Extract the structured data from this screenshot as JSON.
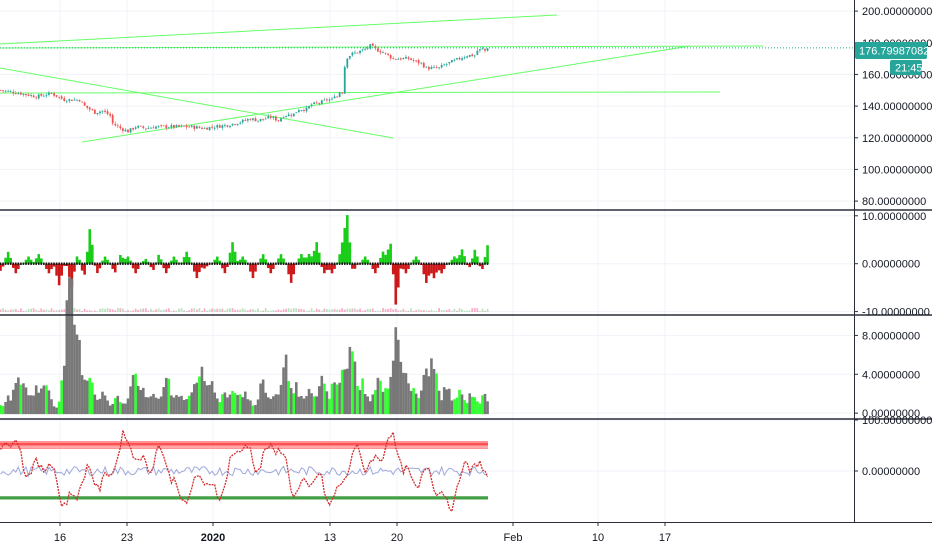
{
  "last_price_label": "176.79987082",
  "countdown_label": "21:45",
  "colors": {
    "up": "#26a69a",
    "down": "#ef5350",
    "trendline": "#66ff66",
    "tag_bg": "#26a69a",
    "osc_green": "#00c800",
    "osc_red": "#c80000",
    "vol_bar": "#787878",
    "vol_hi": "#33ff33",
    "stoch_line": "#d32f2f",
    "stoch_bands_red": "#ff5252",
    "stoch_band_green": "#43a047",
    "blue_line": "#9fa8da"
  },
  "chart_data": [
    {
      "pane": "price",
      "type": "candlestick",
      "y_ticks": [
        "200.00000000",
        "180.00000000",
        "160.00000000",
        "140.00000000",
        "120.00000000",
        "100.00000000",
        "80.00000000"
      ],
      "ylim": [
        75,
        207
      ],
      "last_price": 176.79987082,
      "path": [
        [
          0,
          150
        ],
        [
          8,
          148
        ],
        [
          14,
          146
        ],
        [
          20,
          148
        ],
        [
          25,
          144
        ],
        [
          31,
          144
        ],
        [
          33,
          140
        ],
        [
          37,
          136
        ],
        [
          40,
          137
        ],
        [
          43,
          134
        ],
        [
          44,
          129
        ],
        [
          47,
          126
        ],
        [
          50,
          124
        ],
        [
          53,
          127
        ],
        [
          57,
          126
        ],
        [
          61,
          127
        ],
        [
          68,
          127
        ],
        [
          74,
          127
        ],
        [
          80,
          126
        ],
        [
          84,
          127
        ],
        [
          89,
          128
        ],
        [
          94,
          130
        ],
        [
          98,
          132
        ],
        [
          101,
          131
        ],
        [
          106,
          133
        ],
        [
          109,
          131
        ],
        [
          111,
          134
        ],
        [
          115,
          135
        ],
        [
          117,
          138
        ],
        [
          120,
          138
        ],
        [
          122,
          141
        ],
        [
          125,
          142
        ],
        [
          128,
          144
        ],
        [
          130,
          144
        ],
        [
          131,
          147
        ],
        [
          132,
          146
        ],
        [
          133,
          149
        ],
        [
          133,
          150
        ],
        [
          134,
          149
        ],
        [
          134,
          155
        ],
        [
          135,
          165
        ],
        [
          136,
          171
        ],
        [
          138,
          173
        ],
        [
          140,
          174
        ],
        [
          143,
          176
        ],
        [
          145,
          178
        ],
        [
          147,
          176
        ],
        [
          150,
          174
        ],
        [
          154,
          170
        ],
        [
          157,
          170
        ],
        [
          160,
          170
        ],
        [
          163,
          168
        ],
        [
          165,
          167
        ],
        [
          167,
          164
        ],
        [
          170,
          164
        ],
        [
          172,
          164
        ],
        [
          174,
          166
        ],
        [
          177,
          168
        ],
        [
          180,
          170
        ],
        [
          183,
          172
        ],
        [
          186,
          172
        ],
        [
          187,
          175
        ],
        [
          189,
          176
        ],
        [
          190,
          175
        ],
        [
          191,
          177
        ]
      ]
    },
    {
      "pane": "oscillator",
      "type": "area",
      "y_ticks": [
        "10.00000000",
        "0.00000000",
        "-10.00000000"
      ],
      "ylim": [
        -10.5,
        11
      ],
      "peaks": [
        [
          0,
          -1.5
        ],
        [
          3,
          2.5
        ],
        [
          6,
          -2
        ],
        [
          11,
          1.5
        ],
        [
          15,
          2
        ],
        [
          19,
          -2
        ],
        [
          23,
          -4.5
        ],
        [
          28,
          -5
        ],
        [
          30,
          2
        ],
        [
          33,
          -3
        ],
        [
          35,
          7.5
        ],
        [
          38,
          -2
        ],
        [
          41,
          1.5
        ],
        [
          45,
          -2
        ],
        [
          47,
          2
        ],
        [
          50,
          1.5
        ],
        [
          53,
          -2
        ],
        [
          57,
          1
        ],
        [
          60,
          -1.5
        ],
        [
          62,
          2
        ],
        [
          65,
          -2
        ],
        [
          68,
          1.5
        ],
        [
          73,
          2.5
        ],
        [
          77,
          -3
        ],
        [
          80,
          -1
        ],
        [
          85,
          1.5
        ],
        [
          88,
          -2
        ],
        [
          91,
          4.5
        ],
        [
          95,
          1.5
        ],
        [
          99,
          -3
        ],
        [
          103,
          2
        ],
        [
          106,
          -2
        ],
        [
          110,
          2
        ],
        [
          114,
          -4
        ],
        [
          118,
          2
        ],
        [
          121,
          2
        ],
        [
          124,
          4.5
        ],
        [
          127,
          -2
        ],
        [
          130,
          -2
        ],
        [
          134,
          3.5
        ],
        [
          136,
          10
        ],
        [
          138,
          -2
        ],
        [
          143,
          1.5
        ],
        [
          147,
          -2
        ],
        [
          150,
          2.5
        ],
        [
          153,
          5
        ],
        [
          155,
          -9
        ],
        [
          159,
          -2
        ],
        [
          163,
          1.5
        ],
        [
          167,
          -4
        ],
        [
          170,
          -3
        ],
        [
          173,
          -2
        ],
        [
          178,
          1.5
        ],
        [
          181,
          3
        ],
        [
          184,
          -1
        ],
        [
          186,
          3
        ],
        [
          189,
          -1.5
        ],
        [
          191,
          4
        ]
      ]
    },
    {
      "pane": "volume_histogram",
      "type": "bar",
      "y_ticks": [
        "8.00000000",
        "4.00000000",
        "0.00000000"
      ],
      "ylim": [
        -0.5,
        10
      ]
    },
    {
      "pane": "stochastic",
      "type": "line",
      "y_ticks": [
        "100.00000000",
        "0.00000000"
      ],
      "ylim": [
        -100,
        100
      ]
    }
  ],
  "x_axis": {
    "ticks": [
      {
        "label": "16"
      },
      {
        "label": "23"
      },
      {
        "label": "2020",
        "bold": true
      },
      {
        "label": "13"
      },
      {
        "label": "20"
      },
      {
        "label": "Feb"
      },
      {
        "label": "10"
      },
      {
        "label": "17"
      }
    ]
  }
}
